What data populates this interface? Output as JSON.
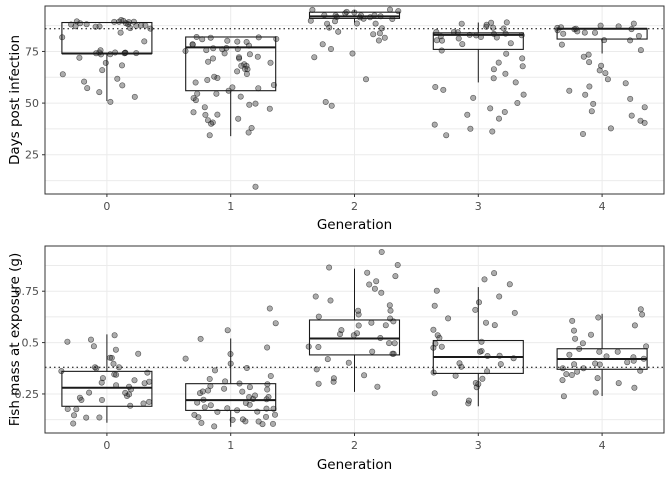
{
  "chart_data": [
    {
      "type": "box_jitter",
      "xlabel": "Generation",
      "ylabel": "Days post infection",
      "categories": [
        "0",
        "1",
        "2",
        "3",
        "4"
      ],
      "ylim": [
        6,
        97
      ],
      "yticks": [
        25,
        50,
        75
      ],
      "reference_line": 86,
      "boxes": [
        {
          "category": "0",
          "min": 51,
          "q1": 74,
          "median": 74,
          "q3": 89,
          "max": 89
        },
        {
          "category": "1",
          "min": 34,
          "q1": 56,
          "median": 77,
          "q3": 82,
          "max": 82
        },
        {
          "category": "2",
          "min": 89,
          "q1": 91,
          "median": 92,
          "q3": 94,
          "max": 95
        },
        {
          "category": "3",
          "min": 60,
          "q1": 76,
          "median": 83,
          "q3": 84,
          "max": 89
        },
        {
          "category": "4",
          "min": 74,
          "q1": 81,
          "median": 86,
          "q3": 86,
          "max": 86
        }
      ],
      "points": [
        {
          "category": "0",
          "values": [
            90,
            90,
            90,
            90,
            89,
            89,
            89,
            89,
            89,
            88,
            88,
            88,
            88,
            88,
            87,
            87,
            87,
            87,
            86,
            86,
            74,
            74,
            74,
            74,
            74,
            74,
            74,
            74,
            75,
            75,
            60,
            58,
            57,
            55,
            53,
            51,
            62,
            64,
            66,
            68,
            70,
            72,
            80,
            82,
            84
          ]
        },
        {
          "category": "1",
          "values": [
            82,
            82,
            81,
            81,
            80,
            80,
            79,
            78,
            77,
            77,
            76,
            76,
            75,
            74,
            73,
            72,
            71,
            70,
            69,
            68,
            67,
            66,
            65,
            64,
            63,
            62,
            61,
            60,
            59,
            58,
            57,
            56,
            55,
            54,
            53,
            52,
            51,
            50,
            49,
            48,
            47,
            46,
            45,
            44,
            43,
            42,
            41,
            40,
            38,
            36,
            34,
            9,
            82,
            80,
            78,
            76,
            74,
            72,
            70,
            68
          ]
        },
        {
          "category": "2",
          "values": [
            95,
            95,
            94,
            94,
            94,
            93,
            93,
            93,
            92,
            92,
            92,
            91,
            91,
            91,
            90,
            90,
            89,
            89,
            88,
            87,
            86,
            85,
            84,
            83,
            82,
            80,
            78,
            76,
            74,
            72,
            62,
            50,
            49,
            94,
            92
          ]
        },
        {
          "category": "3",
          "values": [
            89,
            89,
            88,
            87,
            86,
            85,
            84,
            84,
            84,
            83,
            83,
            83,
            82,
            82,
            81,
            80,
            79,
            78,
            76,
            74,
            72,
            70,
            68,
            66,
            64,
            62,
            60,
            58,
            56,
            54,
            52,
            50,
            48,
            46,
            44,
            42,
            40,
            38,
            36,
            34,
            88,
            86,
            84,
            82,
            80
          ]
        },
        {
          "category": "4",
          "values": [
            88,
            88,
            87,
            87,
            86,
            86,
            86,
            86,
            85,
            85,
            84,
            84,
            83,
            82,
            81,
            80,
            78,
            76,
            74,
            72,
            70,
            68,
            66,
            64,
            62,
            60,
            58,
            56,
            54,
            52,
            50,
            48,
            46,
            44,
            42,
            40,
            38,
            35
          ]
        }
      ]
    },
    {
      "type": "box_jitter",
      "xlabel": "Generation",
      "ylabel": "Fish mass at exposure (g)",
      "categories": [
        "0",
        "1",
        "2",
        "3",
        "4"
      ],
      "ylim": [
        0.06,
        0.97
      ],
      "yticks": [
        0.25,
        0.5,
        0.75
      ],
      "reference_line": 0.38,
      "boxes": [
        {
          "category": "0",
          "min": 0.11,
          "q1": 0.19,
          "median": 0.28,
          "q3": 0.36,
          "max": 0.54
        },
        {
          "category": "1",
          "min": 0.09,
          "q1": 0.17,
          "median": 0.22,
          "q3": 0.3,
          "max": 0.52
        },
        {
          "category": "2",
          "min": 0.26,
          "q1": 0.44,
          "median": 0.52,
          "q3": 0.61,
          "max": 0.86
        },
        {
          "category": "3",
          "min": 0.19,
          "q1": 0.35,
          "median": 0.43,
          "q3": 0.51,
          "max": 0.77
        },
        {
          "category": "4",
          "min": 0.24,
          "q1": 0.37,
          "median": 0.42,
          "q3": 0.47,
          "max": 0.64
        }
      ],
      "points": [
        {
          "category": "0",
          "values": [
            0.11,
            0.13,
            0.15,
            0.17,
            0.19,
            0.2,
            0.21,
            0.22,
            0.23,
            0.24,
            0.25,
            0.26,
            0.27,
            0.28,
            0.29,
            0.3,
            0.31,
            0.32,
            0.33,
            0.34,
            0.35,
            0.36,
            0.37,
            0.38,
            0.4,
            0.42,
            0.44,
            0.46,
            0.48,
            0.5,
            0.52,
            0.54,
            0.14,
            0.18,
            0.22,
            0.26,
            0.3,
            0.34,
            0.38,
            0.42
          ]
        },
        {
          "category": "1",
          "values": [
            0.09,
            0.1,
            0.11,
            0.12,
            0.13,
            0.14,
            0.15,
            0.16,
            0.17,
            0.18,
            0.19,
            0.2,
            0.21,
            0.22,
            0.23,
            0.24,
            0.25,
            0.26,
            0.27,
            0.28,
            0.29,
            0.3,
            0.31,
            0.32,
            0.34,
            0.36,
            0.38,
            0.4,
            0.42,
            0.45,
            0.48,
            0.52,
            0.56,
            0.6,
            0.66,
            0.1,
            0.12,
            0.14,
            0.16,
            0.18,
            0.2,
            0.22,
            0.24,
            0.26,
            0.28,
            0.3,
            0.12,
            0.15,
            0.18,
            0.21,
            0.24,
            0.27
          ]
        },
        {
          "category": "2",
          "values": [
            0.28,
            0.31,
            0.34,
            0.37,
            0.4,
            0.42,
            0.44,
            0.46,
            0.48,
            0.5,
            0.52,
            0.54,
            0.56,
            0.58,
            0.6,
            0.62,
            0.64,
            0.66,
            0.68,
            0.7,
            0.72,
            0.74,
            0.76,
            0.78,
            0.8,
            0.82,
            0.84,
            0.86,
            0.88,
            0.94,
            0.45,
            0.5,
            0.55,
            0.6,
            0.65,
            0.48,
            0.53,
            0.58,
            0.63,
            0.33,
            0.3
          ]
        },
        {
          "category": "3",
          "values": [
            0.2,
            0.22,
            0.25,
            0.28,
            0.3,
            0.32,
            0.34,
            0.36,
            0.38,
            0.4,
            0.42,
            0.44,
            0.46,
            0.48,
            0.5,
            0.52,
            0.54,
            0.56,
            0.58,
            0.6,
            0.62,
            0.64,
            0.66,
            0.68,
            0.7,
            0.72,
            0.75,
            0.78,
            0.81,
            0.84,
            0.4,
            0.45,
            0.5,
            0.35,
            0.3,
            0.43,
            0.47
          ]
        },
        {
          "category": "4",
          "values": [
            0.24,
            0.26,
            0.28,
            0.3,
            0.32,
            0.34,
            0.35,
            0.36,
            0.37,
            0.38,
            0.39,
            0.4,
            0.41,
            0.42,
            0.43,
            0.44,
            0.45,
            0.46,
            0.47,
            0.48,
            0.5,
            0.52,
            0.54,
            0.56,
            0.58,
            0.6,
            0.62,
            0.64,
            0.66,
            0.39,
            0.41,
            0.43,
            0.36,
            0.33
          ]
        }
      ]
    }
  ]
}
